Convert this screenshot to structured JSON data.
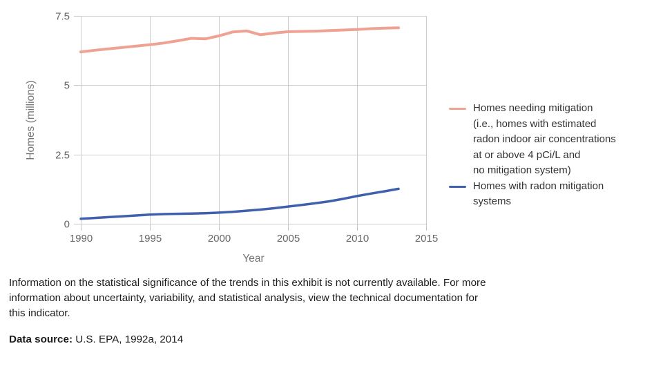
{
  "chart_data": {
    "type": "line",
    "title": "",
    "xlabel": "Year",
    "ylabel": "Homes (millions)",
    "xlim": [
      1990,
      2015
    ],
    "ylim": [
      0,
      7.5
    ],
    "x_ticks": [
      1990,
      1995,
      2000,
      2005,
      2010,
      2015
    ],
    "y_ticks": [
      0,
      2.5,
      5,
      7.5
    ],
    "grid": true,
    "legend_position": "right",
    "x": [
      1990,
      1991,
      1992,
      1993,
      1994,
      1995,
      1996,
      1997,
      1998,
      1999,
      2000,
      2001,
      2002,
      2003,
      2004,
      2005,
      2006,
      2007,
      2008,
      2009,
      2010,
      2011,
      2012,
      2013
    ],
    "series": [
      {
        "name": "Homes needing mitigation (i.e., homes with estimated radon indoor air concentrations at or above 4 pCi/L and no mitigation system)",
        "color": "#EFA294",
        "stroke_width": 4,
        "values": [
          6.2,
          6.26,
          6.31,
          6.36,
          6.41,
          6.46,
          6.52,
          6.6,
          6.69,
          6.67,
          6.78,
          6.92,
          6.96,
          6.82,
          6.88,
          6.93,
          6.94,
          6.95,
          6.97,
          6.99,
          7.01,
          7.04,
          7.06,
          7.07
        ]
      },
      {
        "name": "Homes with radon mitigation systems",
        "color": "#4060AE",
        "stroke_width": 3.5,
        "values": [
          0.18,
          0.21,
          0.24,
          0.27,
          0.3,
          0.33,
          0.35,
          0.36,
          0.37,
          0.38,
          0.4,
          0.43,
          0.47,
          0.51,
          0.56,
          0.62,
          0.68,
          0.74,
          0.81,
          0.9,
          1.0,
          1.09,
          1.17,
          1.26
        ]
      }
    ]
  },
  "axes": {
    "y_title": "Homes (millions)",
    "x_title": "Year"
  },
  "legend": {
    "items": [
      {
        "color": "#EFA294",
        "lines": [
          "Homes needing mitigation",
          "(i.e., homes with estimated",
          "radon indoor air concentrations",
          "at or above 4 pCi/L and",
          "no mitigation system)"
        ]
      },
      {
        "color": "#4060AE",
        "lines": [
          "Homes with radon mitigation",
          "systems"
        ]
      }
    ]
  },
  "footer": {
    "note_lines": [
      "Information on the statistical significance of the trends in this exhibit is not currently available. For more",
      "information about uncertainty, variability, and statistical analysis, view the technical documentation for",
      "this indicator."
    ],
    "source_label": "Data source:",
    "source_text": " U.S. EPA, 1992a, 2014"
  }
}
